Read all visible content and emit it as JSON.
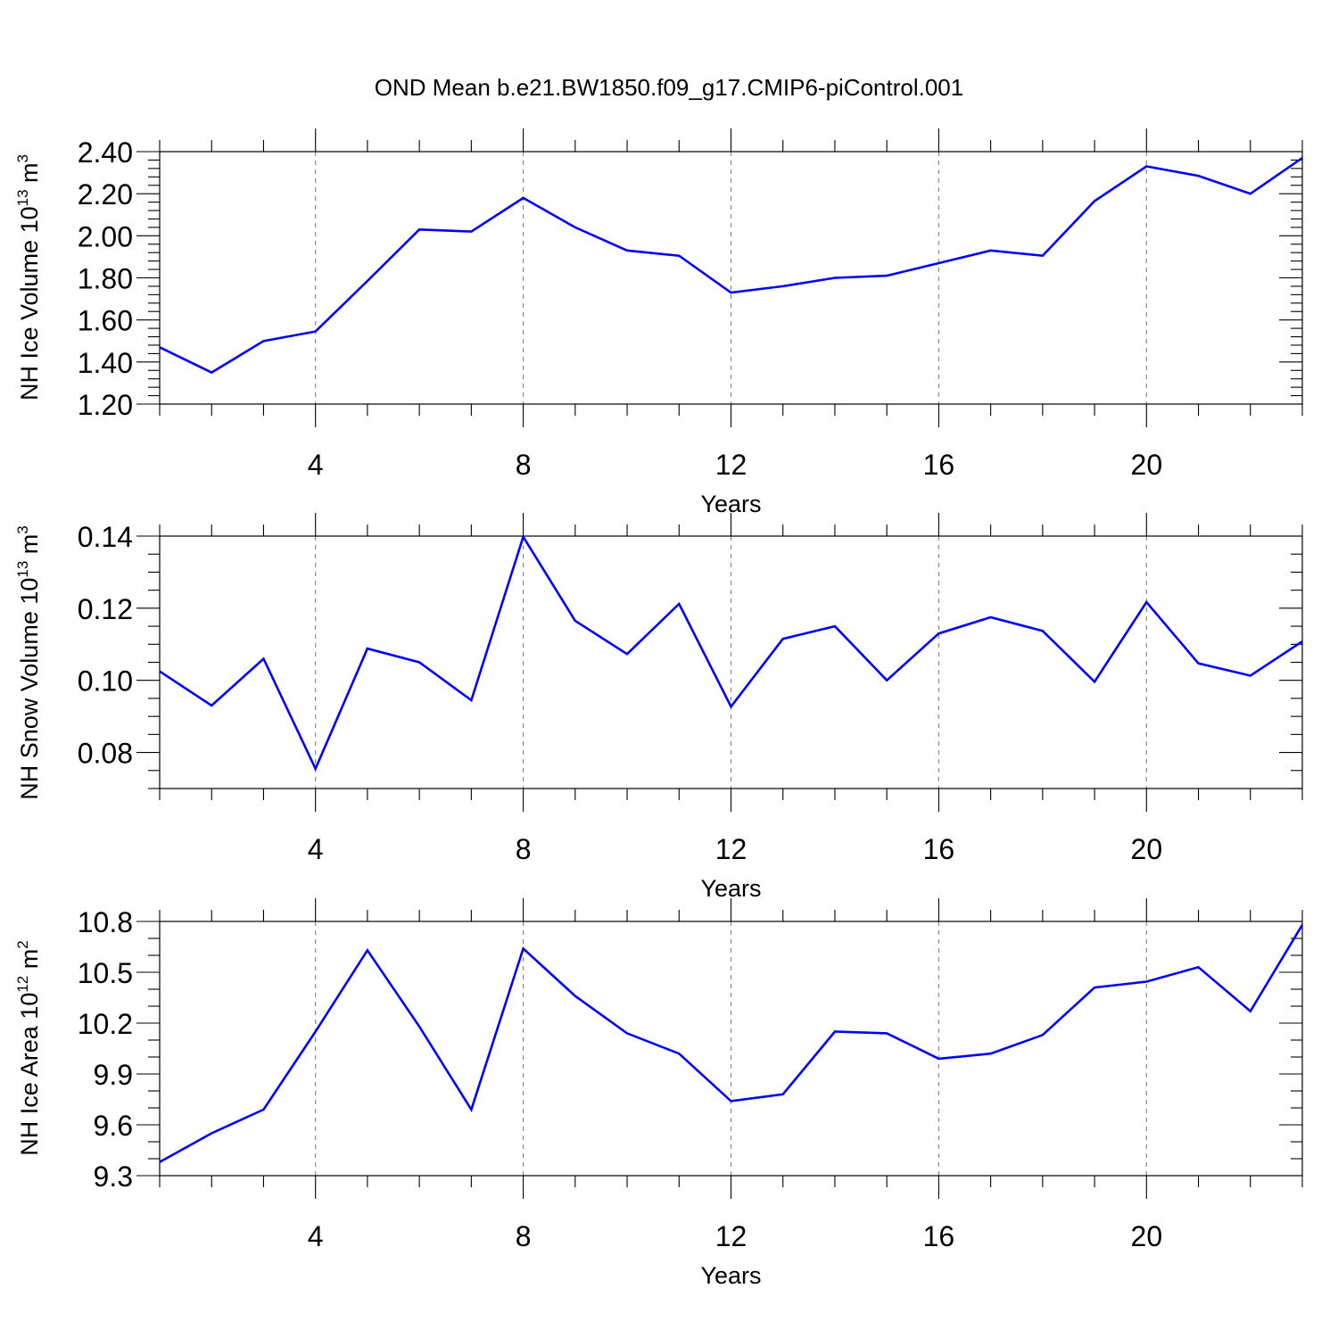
{
  "title": "OND Mean b.e21.BW1850.f09_g17.CMIP6-piControl.001",
  "chart_data": [
    {
      "type": "line",
      "ylabel": {
        "base": "NH Ice Volume 10",
        "exp": "13",
        "unit": " m",
        "unit_exp": "3"
      },
      "xlabel": "Years",
      "xlim": [
        1,
        23
      ],
      "ylim": [
        1.2,
        2.4
      ],
      "xticks": [
        4,
        8,
        12,
        16,
        20
      ],
      "yticks": [
        1.2,
        1.4,
        1.6,
        1.8,
        2.0,
        2.2,
        2.4
      ],
      "ytick_labels": [
        "1.20",
        "1.40",
        "1.60",
        "1.80",
        "2.00",
        "2.20",
        "2.40"
      ],
      "y_minor_step": 0.04,
      "x": [
        1,
        2,
        3,
        4,
        5,
        6,
        7,
        8,
        9,
        10,
        11,
        12,
        13,
        14,
        15,
        16,
        17,
        18,
        19,
        20,
        21,
        22,
        23
      ],
      "values": [
        1.47,
        1.35,
        1.5,
        1.545,
        1.785,
        2.03,
        2.02,
        2.18,
        2.04,
        1.93,
        1.905,
        1.73,
        1.76,
        1.8,
        1.81,
        1.87,
        1.93,
        1.905,
        2.165,
        2.33,
        2.285,
        2.2,
        2.37
      ],
      "grid": "vertical-dashed",
      "color": "#0000ff"
    },
    {
      "type": "line",
      "ylabel": {
        "base": "NH Snow Volume 10",
        "exp": "13",
        "unit": " m",
        "unit_exp": "3"
      },
      "xlabel": "Years",
      "xlim": [
        1,
        23
      ],
      "ylim": [
        0.07,
        0.14
      ],
      "xticks": [
        4,
        8,
        12,
        16,
        20
      ],
      "yticks": [
        0.08,
        0.1,
        0.12,
        0.14
      ],
      "ytick_labels": [
        "0.08",
        "0.10",
        "0.12",
        "0.14"
      ],
      "y_minor_step": 0.005,
      "x": [
        1,
        2,
        3,
        4,
        5,
        6,
        7,
        8,
        9,
        10,
        11,
        12,
        13,
        14,
        15,
        16,
        17,
        18,
        19,
        20,
        21,
        22,
        23
      ],
      "values": [
        0.1025,
        0.093,
        0.106,
        0.0755,
        0.1088,
        0.105,
        0.0945,
        0.1398,
        0.1165,
        0.1073,
        0.1212,
        0.0927,
        0.1115,
        0.115,
        0.1,
        0.113,
        0.1175,
        0.1137,
        0.0996,
        0.1217,
        0.1047,
        0.1013,
        0.1108
      ],
      "grid": "vertical-dashed",
      "color": "#0000ff"
    },
    {
      "type": "line",
      "ylabel": {
        "base": "NH Ice Area 10",
        "exp": "12",
        "unit": " m",
        "unit_exp": "2"
      },
      "xlabel": "Years",
      "xlim": [
        1,
        23
      ],
      "ylim": [
        9.3,
        10.8
      ],
      "xticks": [
        4,
        8,
        12,
        16,
        20
      ],
      "yticks": [
        9.3,
        9.6,
        9.9,
        10.2,
        10.5,
        10.8
      ],
      "ytick_labels": [
        "9.3",
        "9.6",
        "9.9",
        "10.2",
        "10.5",
        "10.8"
      ],
      "y_minor_step": 0.1,
      "x": [
        1,
        2,
        3,
        4,
        5,
        6,
        7,
        8,
        9,
        10,
        11,
        12,
        13,
        14,
        15,
        16,
        17,
        18,
        19,
        20,
        21,
        22,
        23
      ],
      "values": [
        9.38,
        9.55,
        9.69,
        10.15,
        10.63,
        10.18,
        9.69,
        10.64,
        10.36,
        10.14,
        10.02,
        9.74,
        9.78,
        10.15,
        10.14,
        9.99,
        10.02,
        10.13,
        10.41,
        10.445,
        10.53,
        10.27,
        10.78
      ],
      "grid": "vertical-dashed",
      "color": "#0000ff"
    }
  ]
}
